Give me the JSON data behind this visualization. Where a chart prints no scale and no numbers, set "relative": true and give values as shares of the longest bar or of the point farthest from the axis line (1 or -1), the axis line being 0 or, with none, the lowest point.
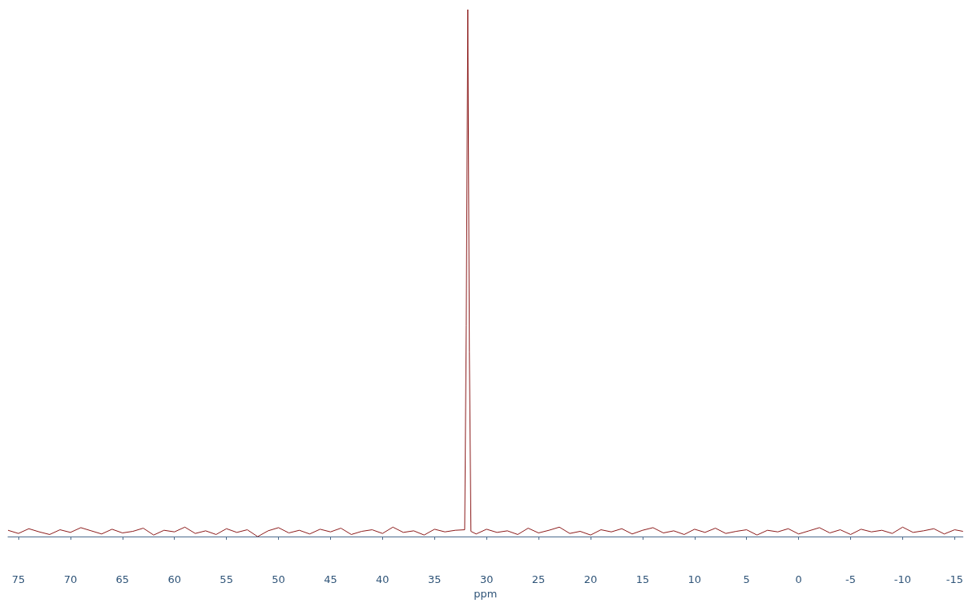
{
  "chart_data": {
    "type": "line",
    "xlabel": "ppm",
    "relative": true,
    "grid": false,
    "marker": "none",
    "line_style": "solid",
    "xlim": [
      76,
      -15.8
    ],
    "xticks": [
      75,
      70,
      65,
      60,
      55,
      50,
      45,
      40,
      35,
      30,
      25,
      20,
      15,
      10,
      5,
      0,
      -5,
      -10,
      -15
    ],
    "series": [
      {
        "color": "#8b1a1a",
        "x": [
          76,
          75,
          74,
          73,
          72,
          71,
          70,
          69,
          68,
          67,
          66,
          65,
          64,
          63,
          62,
          61,
          60,
          59,
          58,
          57,
          56,
          55,
          54,
          53,
          52,
          51,
          50,
          49,
          48,
          47,
          46,
          45,
          44,
          43,
          42,
          41,
          40,
          39,
          38,
          37,
          36,
          35,
          34,
          33,
          32.1,
          31.95,
          31.8,
          31.65,
          31.5,
          31,
          30,
          29,
          28,
          27,
          26,
          25,
          24,
          23,
          22,
          21,
          20,
          19,
          18,
          17,
          16,
          15,
          14,
          13,
          12,
          11,
          10,
          9,
          8,
          7,
          6,
          5,
          4,
          3,
          2,
          1,
          0,
          -1,
          -2,
          -3,
          -4,
          -5,
          -6,
          -7,
          -8,
          -9,
          -10,
          -11,
          -12,
          -13,
          -14,
          -15,
          -15.8
        ],
        "values": [
          0.012,
          0.006,
          0.015,
          0.009,
          0.004,
          0.013,
          0.008,
          0.017,
          0.011,
          0.005,
          0.014,
          0.007,
          0.01,
          0.016,
          0.003,
          0.012,
          0.009,
          0.018,
          0.006,
          0.011,
          0.004,
          0.015,
          0.008,
          0.013,
          0,
          0.011,
          0.017,
          0.007,
          0.012,
          0.005,
          0.014,
          0.009,
          0.016,
          0.004,
          0.01,
          0.013,
          0.006,
          0.018,
          0.008,
          0.011,
          0.003,
          0.014,
          0.009,
          0.012,
          0.013,
          0.4,
          1,
          0.35,
          0.01,
          0.005,
          0.014,
          0.008,
          0.011,
          0.004,
          0.016,
          0.007,
          0.012,
          0.018,
          0.006,
          0.01,
          0.003,
          0.013,
          0.009,
          0.015,
          0.005,
          0.012,
          0.017,
          0.007,
          0.011,
          0.004,
          0.014,
          0.008,
          0.016,
          0.006,
          0.01,
          0.013,
          0.003,
          0.012,
          0.009,
          0.015,
          0.005,
          0.011,
          0.017,
          0.007,
          0.013,
          0.004,
          0.014,
          0.009,
          0.012,
          0.006,
          0.018,
          0.008,
          0.011,
          0.015,
          0.005,
          0.013,
          0.01
        ]
      }
    ]
  }
}
